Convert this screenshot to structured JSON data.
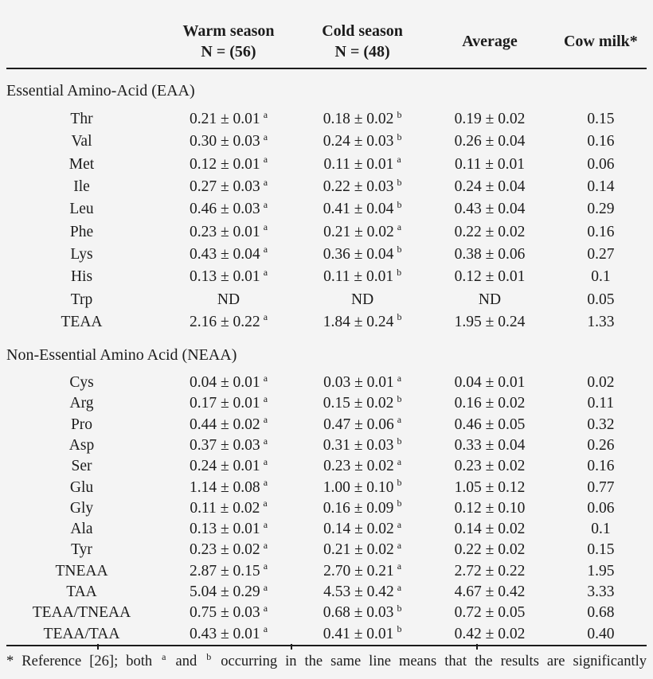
{
  "table": {
    "header": {
      "warm": {
        "line1": "Warm season",
        "line2": "N = (56)"
      },
      "cold": {
        "line1": "Cold season",
        "line2": "N = (48)"
      },
      "average": "Average",
      "cow_milk": "Cow milk*"
    },
    "sections": [
      {
        "title": "Essential Amino-Acid (EAA)",
        "rows": [
          {
            "label": "Thr",
            "warm": "0.21 ± 0.01",
            "warm_sup": "a",
            "cold": "0.18 ± 0.02",
            "cold_sup": "b",
            "average": "0.19 ± 0.02",
            "cow_milk": "0.15"
          },
          {
            "label": "Val",
            "warm": "0.30 ± 0.03",
            "warm_sup": "a",
            "cold": "0.24 ± 0.03",
            "cold_sup": "b",
            "average": "0.26 ± 0.04",
            "cow_milk": "0.16"
          },
          {
            "label": "Met",
            "warm": "0.12 ± 0.01",
            "warm_sup": "a",
            "cold": "0.11 ± 0.01",
            "cold_sup": "a",
            "average": "0.11 ± 0.01",
            "cow_milk": "0.06"
          },
          {
            "label": "Ile",
            "warm": "0.27 ± 0.03",
            "warm_sup": "a",
            "cold": "0.22 ± 0.03",
            "cold_sup": "b",
            "average": "0.24 ± 0.04",
            "cow_milk": "0.14"
          },
          {
            "label": "Leu",
            "warm": "0.46 ± 0.03",
            "warm_sup": "a",
            "cold": "0.41 ± 0.04",
            "cold_sup": "b",
            "average": "0.43 ± 0.04",
            "cow_milk": "0.29"
          },
          {
            "label": "Phe",
            "warm": "0.23 ± 0.01",
            "warm_sup": "a",
            "cold": "0.21 ± 0.02",
            "cold_sup": "a",
            "average": "0.22 ± 0.02",
            "cow_milk": "0.16"
          },
          {
            "label": "Lys",
            "warm": "0.43 ± 0.04",
            "warm_sup": "a",
            "cold": "0.36 ± 0.04",
            "cold_sup": "b",
            "average": "0.38 ± 0.06",
            "cow_milk": "0.27"
          },
          {
            "label": "His",
            "warm": "0.13 ± 0.01",
            "warm_sup": "a",
            "cold": "0.11 ± 0.01",
            "cold_sup": "b",
            "average": "0.12 ± 0.01",
            "cow_milk": "0.1"
          },
          {
            "label": "Trp",
            "warm": "ND",
            "warm_sup": "",
            "cold": "ND",
            "cold_sup": "",
            "average": "ND",
            "cow_milk": "0.05"
          },
          {
            "label": "TEAA",
            "warm": "2.16 ± 0.22",
            "warm_sup": "a",
            "cold": "1.84 ± 0.24",
            "cold_sup": "b",
            "average": "1.95 ± 0.24",
            "cow_milk": "1.33"
          }
        ]
      },
      {
        "title": "Non-Essential Amino Acid (NEAA)",
        "rows": [
          {
            "label": "Cys",
            "warm": "0.04 ± 0.01",
            "warm_sup": "a",
            "cold": "0.03 ± 0.01",
            "cold_sup": "a",
            "average": "0.04 ± 0.01",
            "cow_milk": "0.02"
          },
          {
            "label": "Arg",
            "warm": "0.17 ± 0.01",
            "warm_sup": "a",
            "cold": "0.15 ± 0.02",
            "cold_sup": "b",
            "average": "0.16 ± 0.02",
            "cow_milk": "0.11"
          },
          {
            "label": "Pro",
            "warm": "0.44 ± 0.02",
            "warm_sup": "a",
            "cold": "0.47 ± 0.06",
            "cold_sup": "a",
            "average": "0.46 ± 0.05",
            "cow_milk": "0.32"
          },
          {
            "label": "Asp",
            "warm": "0.37 ± 0.03",
            "warm_sup": "a",
            "cold": "0.31 ± 0.03",
            "cold_sup": "b",
            "average": "0.33 ± 0.04",
            "cow_milk": "0.26"
          },
          {
            "label": "Ser",
            "warm": "0.24 ± 0.01",
            "warm_sup": "a",
            "cold": "0.23 ± 0.02",
            "cold_sup": "a",
            "average": "0.23 ± 0.02",
            "cow_milk": "0.16"
          },
          {
            "label": "Glu",
            "warm": "1.14 ± 0.08",
            "warm_sup": "a",
            "cold": "1.00 ± 0.10",
            "cold_sup": "b",
            "average": "1.05 ± 0.12",
            "cow_milk": "0.77"
          },
          {
            "label": "Gly",
            "warm": "0.11 ± 0.02",
            "warm_sup": "a",
            "cold": "0.16 ± 0.09",
            "cold_sup": "b",
            "average": "0.12 ± 0.10",
            "cow_milk": "0.06"
          },
          {
            "label": "Ala",
            "warm": "0.13 ± 0.01",
            "warm_sup": "a",
            "cold": "0.14 ± 0.02",
            "cold_sup": "a",
            "average": "0.14 ± 0.02",
            "cow_milk": "0.1"
          },
          {
            "label": "Tyr",
            "warm": "0.23 ± 0.02",
            "warm_sup": "a",
            "cold": "0.21 ± 0.02",
            "cold_sup": "a",
            "average": "0.22 ± 0.02",
            "cow_milk": "0.15"
          },
          {
            "label": "TNEAA",
            "warm": "2.87 ± 0.15",
            "warm_sup": "a",
            "cold": "2.70 ± 0.21",
            "cold_sup": "a",
            "average": "2.72 ± 0.22",
            "cow_milk": "1.95"
          },
          {
            "label": "TAA",
            "warm": "5.04 ± 0.29",
            "warm_sup": "a",
            "cold": "4.53 ± 0.42",
            "cold_sup": "a",
            "average": "4.67 ± 0.42",
            "cow_milk": "3.33"
          },
          {
            "label": "TEAA/TNEAA",
            "warm": "0.75 ± 0.03",
            "warm_sup": "a",
            "cold": "0.68 ± 0.03",
            "cold_sup": "b",
            "average": "0.72 ± 0.05",
            "cow_milk": "0.68"
          },
          {
            "label": "TEAA/TAA",
            "warm": "0.43 ± 0.01",
            "warm_sup": "a",
            "cold": "0.41 ± 0.01",
            "cold_sup": "b",
            "average": "0.42 ± 0.02",
            "cow_milk": "0.40"
          }
        ]
      }
    ],
    "footnote": {
      "part1": "* Reference [26]; both ",
      "sup_a": "a",
      "part2": " and ",
      "sup_b": "b",
      "part3": " occurring in the same line means that the results are significantly"
    }
  }
}
